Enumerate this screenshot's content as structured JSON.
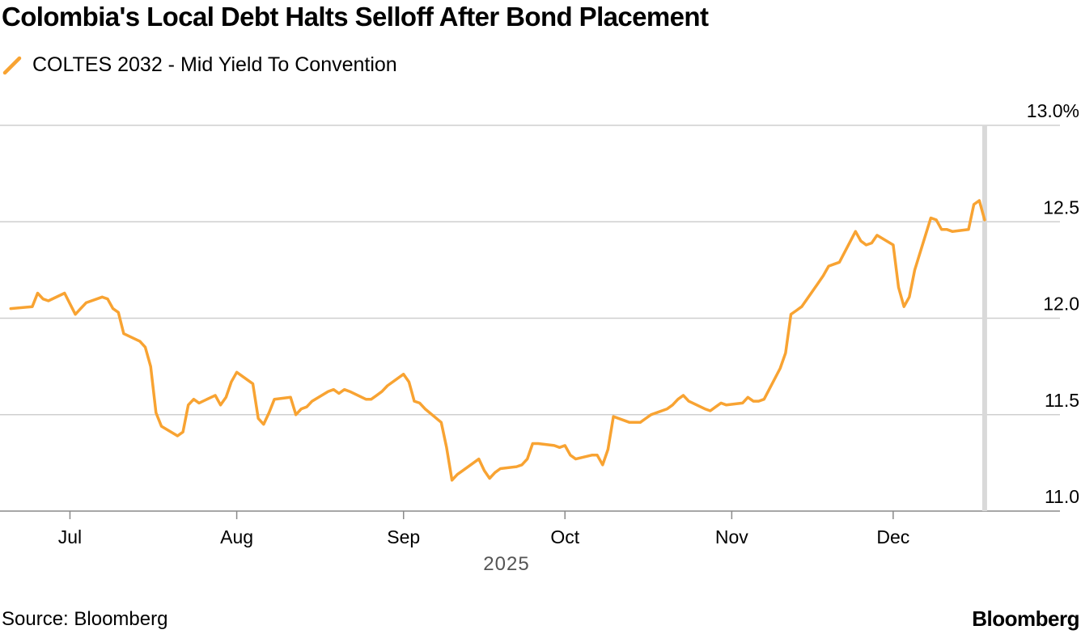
{
  "title": "Colombia's Local Debt Halts Selloff After Bond Placement",
  "source": "Source: Bloomberg",
  "brand": "Bloomberg",
  "colors": {
    "series": "#f8a332",
    "grid": "#cfcfcf",
    "marker": "#d9d9d9",
    "axis": "#8a8a8a"
  },
  "chart_data": {
    "type": "line",
    "title": "Colombia's Local Debt Halts Selloff After Bond Placement",
    "xlabel": "2025",
    "ylabel": "",
    "ylim": [
      11.0,
      13.0
    ],
    "y_ticks": [
      "13.0%",
      "12.5",
      "12.0",
      "11.5",
      "11.0"
    ],
    "y_tick_values": [
      13.0,
      12.5,
      12.0,
      11.5,
      11.0
    ],
    "x_ticks": [
      "Jul",
      "Aug",
      "Sep",
      "Oct",
      "Nov",
      "Dec"
    ],
    "x_tick_dates": [
      "2025-07-01",
      "2025-08-01",
      "2025-09-01",
      "2025-10-01",
      "2025-11-01",
      "2025-12-01"
    ],
    "xlim": [
      "2025-06-18",
      "2026-01-01"
    ],
    "year_label": "2025",
    "grid": true,
    "legend_position": "top-left",
    "marker_date": "2025-12-18",
    "series": [
      {
        "name": "COLTES 2032 - Mid Yield To Convention",
        "color": "#f8a332",
        "x": [
          "2025-06-20",
          "2025-06-24",
          "2025-06-25",
          "2025-06-26",
          "2025-06-27",
          "2025-06-30",
          "2025-07-02",
          "2025-07-03",
          "2025-07-04",
          "2025-07-07",
          "2025-07-08",
          "2025-07-09",
          "2025-07-10",
          "2025-07-11",
          "2025-07-14",
          "2025-07-15",
          "2025-07-16",
          "2025-07-17",
          "2025-07-18",
          "2025-07-21",
          "2025-07-22",
          "2025-07-23",
          "2025-07-24",
          "2025-07-25",
          "2025-07-28",
          "2025-07-29",
          "2025-07-30",
          "2025-07-31",
          "2025-08-01",
          "2025-08-04",
          "2025-08-05",
          "2025-08-06",
          "2025-08-07",
          "2025-08-08",
          "2025-08-11",
          "2025-08-12",
          "2025-08-13",
          "2025-08-14",
          "2025-08-15",
          "2025-08-18",
          "2025-08-19",
          "2025-08-20",
          "2025-08-21",
          "2025-08-22",
          "2025-08-25",
          "2025-08-26",
          "2025-08-27",
          "2025-08-28",
          "2025-08-29",
          "2025-09-01",
          "2025-09-02",
          "2025-09-03",
          "2025-09-04",
          "2025-09-05",
          "2025-09-08",
          "2025-09-09",
          "2025-09-10",
          "2025-09-11",
          "2025-09-12",
          "2025-09-15",
          "2025-09-16",
          "2025-09-17",
          "2025-09-18",
          "2025-09-19",
          "2025-09-22",
          "2025-09-23",
          "2025-09-24",
          "2025-09-25",
          "2025-09-26",
          "2025-09-29",
          "2025-09-30",
          "2025-10-01",
          "2025-10-02",
          "2025-10-03",
          "2025-10-06",
          "2025-10-07",
          "2025-10-08",
          "2025-10-09",
          "2025-10-10",
          "2025-10-13",
          "2025-10-14",
          "2025-10-15",
          "2025-10-16",
          "2025-10-17",
          "2025-10-20",
          "2025-10-21",
          "2025-10-22",
          "2025-10-23",
          "2025-10-24",
          "2025-10-27",
          "2025-10-28",
          "2025-10-29",
          "2025-10-30",
          "2025-10-31",
          "2025-11-03",
          "2025-11-04",
          "2025-11-05",
          "2025-11-06",
          "2025-11-07",
          "2025-11-10",
          "2025-11-11",
          "2025-11-12",
          "2025-11-13",
          "2025-11-14",
          "2025-11-17",
          "2025-11-18",
          "2025-11-19",
          "2025-11-20",
          "2025-11-21",
          "2025-11-24",
          "2025-11-25",
          "2025-11-26",
          "2025-11-27",
          "2025-11-28",
          "2025-12-01",
          "2025-12-02",
          "2025-12-03",
          "2025-12-04",
          "2025-12-05",
          "2025-12-08",
          "2025-12-09",
          "2025-12-10",
          "2025-12-11",
          "2025-12-12",
          "2025-12-15",
          "2025-12-16",
          "2025-12-17",
          "2025-12-18"
        ],
        "values": [
          12.05,
          12.06,
          12.13,
          12.1,
          12.09,
          12.13,
          12.02,
          12.05,
          12.08,
          12.11,
          12.1,
          12.05,
          12.03,
          11.92,
          11.88,
          11.85,
          11.75,
          11.51,
          11.44,
          11.39,
          11.41,
          11.55,
          11.58,
          11.56,
          11.6,
          11.55,
          11.59,
          11.67,
          11.72,
          11.66,
          11.48,
          11.45,
          11.51,
          11.58,
          11.59,
          11.5,
          11.53,
          11.54,
          11.57,
          11.62,
          11.63,
          11.61,
          11.63,
          11.62,
          11.58,
          11.58,
          11.6,
          11.62,
          11.65,
          11.71,
          11.67,
          11.57,
          11.56,
          11.53,
          11.46,
          11.33,
          11.16,
          11.19,
          11.21,
          11.27,
          11.21,
          11.17,
          11.2,
          11.22,
          11.23,
          11.24,
          11.27,
          11.35,
          11.35,
          11.34,
          11.33,
          11.34,
          11.29,
          11.27,
          11.29,
          11.29,
          11.24,
          11.32,
          11.49,
          11.46,
          11.46,
          11.46,
          11.48,
          11.5,
          11.53,
          11.55,
          11.58,
          11.6,
          11.57,
          11.53,
          11.52,
          11.54,
          11.56,
          11.55,
          11.56,
          11.59,
          11.57,
          11.57,
          11.58,
          11.74,
          11.82,
          12.02,
          12.04,
          12.06,
          12.18,
          12.22,
          12.27,
          12.28,
          12.29,
          12.45,
          12.4,
          12.38,
          12.39,
          12.43,
          12.38,
          12.16,
          12.06,
          12.11,
          12.25,
          12.52,
          12.51,
          12.46,
          12.46,
          12.45,
          12.46,
          12.59,
          12.61,
          12.51
        ]
      }
    ]
  }
}
